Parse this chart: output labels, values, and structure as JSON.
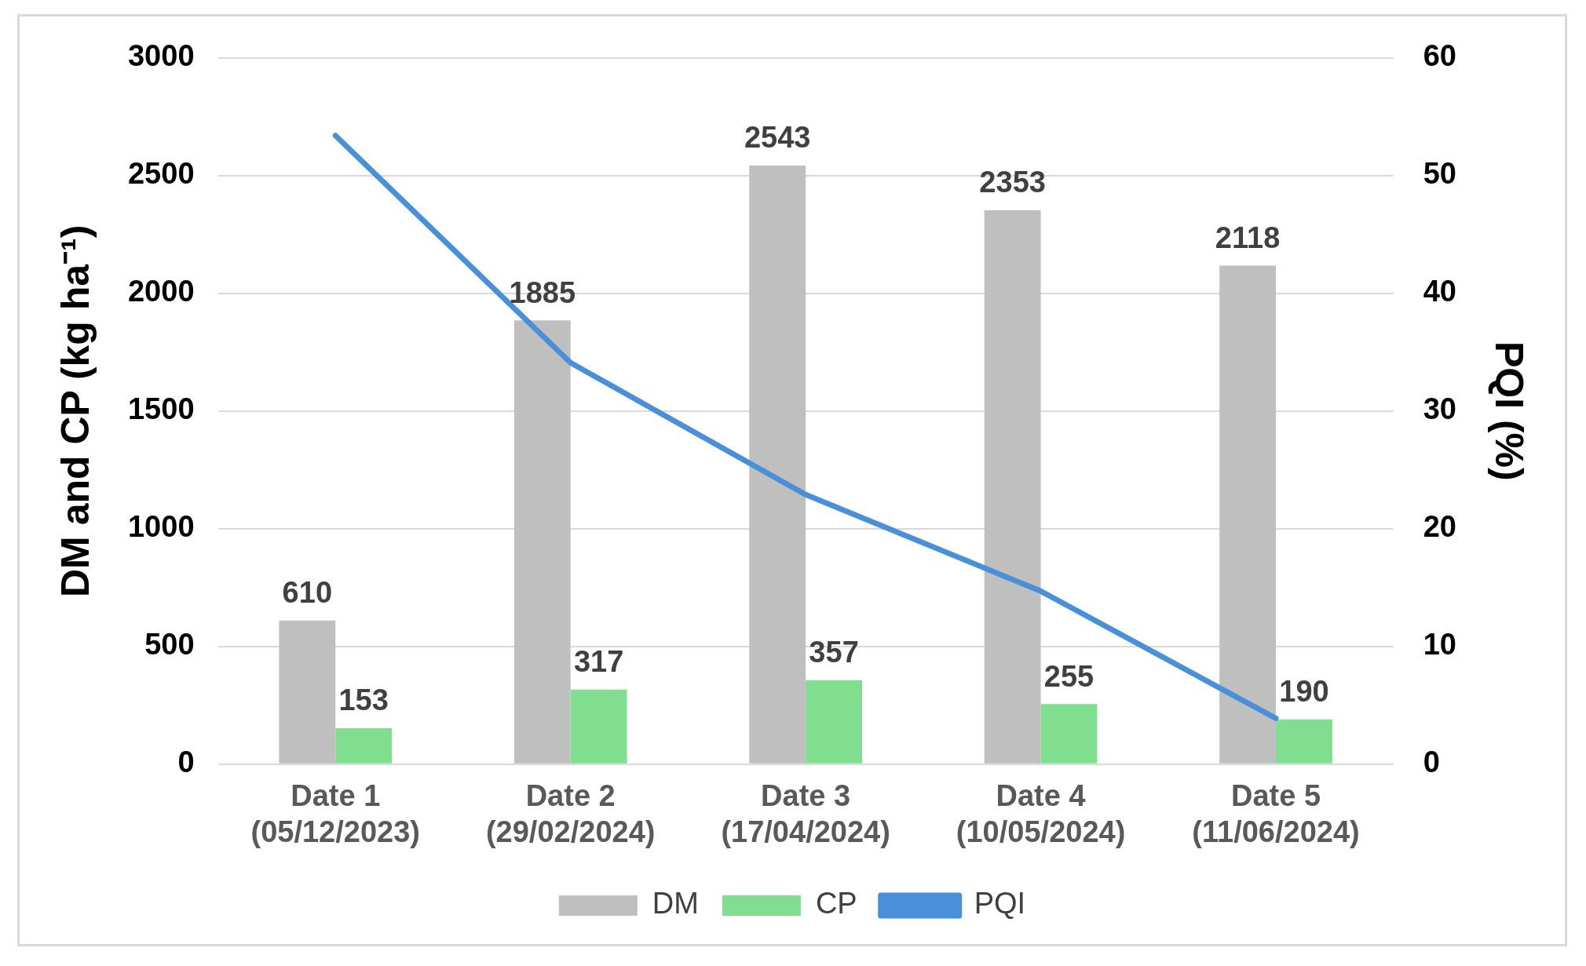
{
  "chart_data": {
    "type": "bar",
    "categories": [
      "Date 1\n(05/12/2023)",
      "Date 2\n(29/02/2024)",
      "Date 3\n(17/04/2024)",
      "Date 4\n(10/05/2024)",
      "Date 5\n(11/06/2024)"
    ],
    "ylabel": "DM and CP (kg ha⁻¹)",
    "y2label": "PQI (%)",
    "ylim": [
      0,
      3000
    ],
    "yticks": [
      0,
      500,
      1000,
      1500,
      2000,
      2500,
      3000
    ],
    "y2lim": [
      0,
      60
    ],
    "y2ticks": [
      0,
      10,
      20,
      30,
      40,
      50,
      60
    ],
    "grid": "y",
    "legend": "bottom",
    "marker": "none",
    "line_style": "solid",
    "series": [
      {
        "name": "DM",
        "color": "#bfbfbf",
        "values": [
          610,
          1885,
          2543,
          2353,
          2118
        ],
        "value_labels": [
          "610",
          "1885",
          "2543",
          "2353",
          "2118"
        ]
      },
      {
        "name": "CP",
        "color": "#7fdf8f",
        "values": [
          153,
          317,
          357,
          255,
          190
        ],
        "value_labels": [
          "153",
          "317",
          "357",
          "255",
          "190"
        ]
      },
      {
        "name": "PQI",
        "type": "line",
        "axis": "y2",
        "color": "#4a90d9",
        "values": [
          53.4,
          34.1,
          22.9,
          14.7,
          3.9
        ]
      }
    ]
  }
}
